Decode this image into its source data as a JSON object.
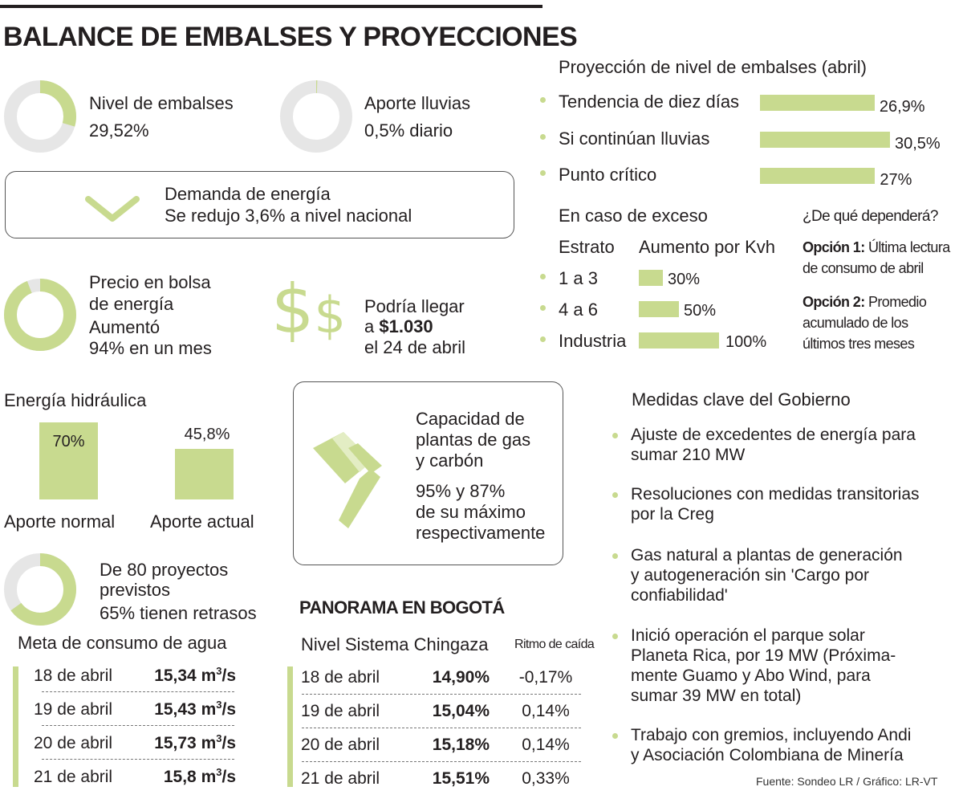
{
  "title": "BALANCE DE EMBALSES Y PROYECCIONES",
  "colors": {
    "accent": "#c8da8f",
    "track": "#e6e6e6",
    "text": "#231f20"
  },
  "embalses": {
    "label": "Nivel de embalses",
    "value": "29,52%",
    "fraction": 0.2952
  },
  "lluvias": {
    "label": "Aporte lluvias",
    "value": "0,5% diario",
    "fraction": 0.005
  },
  "demanda": {
    "icon": "chevron-down-icon",
    "title": "Demanda de energía",
    "text": "Se redujo 3,6% a nivel nacional"
  },
  "precio": {
    "title1": "Precio en bolsa",
    "title2": "de energía",
    "line1": "Aumentó",
    "line2": "94% en un mes",
    "fraction": 0.94,
    "icon": "dollar-icon",
    "pred1": "Podría llegar",
    "pred2_prefix": "a ",
    "pred2_value": "$1.030",
    "pred3": "el 24 de abril"
  },
  "hidraulica": {
    "title": "Energía hidráulica",
    "bars": [
      {
        "label": "Aporte normal",
        "value_label": "70%",
        "value": 70
      },
      {
        "label": "Aporte actual",
        "value_label": "45,8%",
        "value": 45.8
      }
    ]
  },
  "proyectos": {
    "title1": "De 80 proyectos",
    "title2": "previstos",
    "text": "65% tienen retrasos",
    "fraction": 0.65
  },
  "capacidad": {
    "icon": "factory-icon",
    "title1": "Capacidad de",
    "title2": "plantas de gas",
    "title3": "y carbón",
    "text1": "95% y 87%",
    "text2": "de su máximo",
    "text3": "respectivamente"
  },
  "proyeccion": {
    "title": "Proyección de nivel de embalses (abril)",
    "items": [
      {
        "label": "Tendencia de diez días",
        "value_label": "26,9%",
        "value": 26.9
      },
      {
        "label": "Si continúan lluvias",
        "value_label": "30,5%",
        "value": 30.5
      },
      {
        "label": "Punto crítico",
        "value_label": "27%",
        "value": 27
      }
    ]
  },
  "exceso": {
    "title": "En caso de exceso",
    "col1": "Estrato",
    "col2": "Aumento por Kvh",
    "rows": [
      {
        "label": "1 a 3",
        "value_label": "30%",
        "value": 30
      },
      {
        "label": "4 a 6",
        "value_label": "50%",
        "value": 50
      },
      {
        "label": "Industria",
        "value_label": "100%",
        "value": 100
      }
    ]
  },
  "depende": {
    "title": "¿De qué dependerá?",
    "op1_label": "Opción 1:",
    "op1_l1": " Última lectura",
    "op1_l2": "de consumo de abril",
    "op2_label": "Opción 2:",
    "op2_l1": " Promedio",
    "op2_l2": "acumulado de los",
    "op2_l3": "últimos tres meses"
  },
  "medidas": {
    "title": "Medidas clave del Gobierno",
    "items": [
      [
        "Ajuste de excedentes de energía para",
        "sumar 210 MW"
      ],
      [
        "Resoluciones con medidas transitorias",
        "por la Creg"
      ],
      [
        "Gas natural a plantas de generación",
        "y autogeneración sin 'Cargo por",
        "confiabilidad'"
      ],
      [
        "Inició operación el parque solar",
        "Planeta Rica, por 19 MW (Próxima-",
        "mente Guamo y Abo Wind, para",
        "sumar 39 MW en total)"
      ],
      [
        "Trabajo con gremios, incluyendo Andi",
        "y Asociación Colombiana de Minería"
      ]
    ]
  },
  "agua": {
    "title": "Meta de consumo de agua",
    "rows": [
      {
        "date": "18 de abril",
        "value": "15,34 m",
        "unit_sup": "3",
        "unit_tail": "/s"
      },
      {
        "date": "19 de abril",
        "value": "15,43 m",
        "unit_sup": "3",
        "unit_tail": "/s"
      },
      {
        "date": "20 de abril",
        "value": "15,73 m",
        "unit_sup": "3",
        "unit_tail": "/s"
      },
      {
        "date": "21 de abril",
        "value": "15,8 m",
        "unit_sup": "3",
        "unit_tail": "/s"
      }
    ]
  },
  "bogota": {
    "title": "PANORAMA EN BOGOTÁ",
    "subtitle": "Nivel Sistema Chingaza",
    "col3": "Ritmo de caída",
    "rows": [
      {
        "date": "18 de abril",
        "level": "14,90%",
        "rate": "-0,17%"
      },
      {
        "date": "19 de abril",
        "level": "15,04%",
        "rate": "0,14%"
      },
      {
        "date": "20 de abril",
        "level": "15,18%",
        "rate": "0,14%"
      },
      {
        "date": "21 de abril",
        "level": "15,51%",
        "rate": "0,33%"
      }
    ]
  },
  "fuente": "Fuente: Sondeo LR / Gráfico: LR-VT",
  "chart_data": [
    {
      "type": "pie",
      "title": "Nivel de embalses",
      "values": [
        29.52
      ],
      "unit": "%"
    },
    {
      "type": "pie",
      "title": "Aporte lluvias",
      "values": [
        0.5
      ],
      "unit": "% diario"
    },
    {
      "type": "bar",
      "title": "Energía hidráulica",
      "categories": [
        "Aporte normal",
        "Aporte actual"
      ],
      "values": [
        70,
        45.8
      ],
      "unit": "%"
    },
    {
      "type": "bar",
      "title": "Proyección de nivel de embalses (abril)",
      "categories": [
        "Tendencia de diez días",
        "Si continúan lluvias",
        "Punto crítico"
      ],
      "values": [
        26.9,
        30.5,
        27
      ],
      "unit": "%"
    },
    {
      "type": "bar",
      "title": "En caso de exceso",
      "categories": [
        "1 a 3",
        "4 a 6",
        "Industria"
      ],
      "values": [
        30,
        50,
        100
      ],
      "unit": "%"
    },
    {
      "type": "table",
      "title": "Meta de consumo de agua",
      "categories": [
        "18 de abril",
        "19 de abril",
        "20 de abril",
        "21 de abril"
      ],
      "values": [
        15.34,
        15.43,
        15.73,
        15.8
      ],
      "unit": "m3/s"
    },
    {
      "type": "table",
      "title": "Nivel Sistema Chingaza",
      "categories": [
        "18 de abril",
        "19 de abril",
        "20 de abril",
        "21 de abril"
      ],
      "series": [
        {
          "name": "Nivel",
          "values": [
            14.9,
            15.04,
            15.18,
            15.51
          ]
        },
        {
          "name": "Ritmo de caída",
          "values": [
            -0.17,
            0.14,
            0.14,
            0.33
          ]
        }
      ],
      "unit": "%"
    }
  ]
}
